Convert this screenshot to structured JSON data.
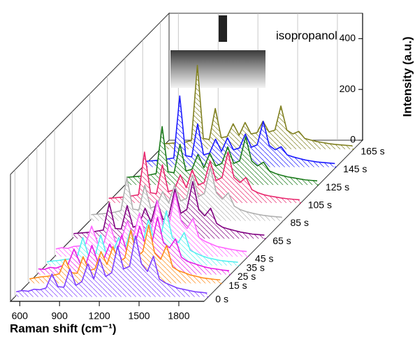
{
  "chart_data": {
    "type": "waterfall",
    "xlabel": "Raman shift (cm⁻¹)",
    "zlabel": "Intensity (a.u.)",
    "annotation": "isopropanol",
    "xlim": [
      530,
      1990
    ],
    "xticks": [
      600,
      900,
      1200,
      1500,
      1800
    ],
    "tlim": [
      -5,
      175
    ],
    "zlim": [
      0,
      500
    ],
    "zticks": [
      0,
      200,
      400
    ],
    "x": [
      540,
      585,
      630,
      675,
      720,
      765,
      810,
      855,
      900,
      945,
      990,
      1035,
      1080,
      1125,
      1170,
      1215,
      1260,
      1305,
      1350,
      1395,
      1440,
      1485,
      1530,
      1575,
      1620,
      1665,
      1710,
      1755,
      1800,
      1845,
      1890,
      1935,
      1980
    ],
    "series": [
      {
        "name": "0 s",
        "time": 0,
        "color": "#7f3fff",
        "values": [
          20,
          25,
          22,
          30,
          28,
          35,
          90,
          40,
          38,
          110,
          45,
          60,
          130,
          70,
          150,
          80,
          95,
          200,
          110,
          120,
          240,
          130,
          100,
          160,
          70,
          55,
          45,
          35,
          30,
          25,
          20,
          18,
          15
        ]
      },
      {
        "name": "15 s",
        "time": 15,
        "color": "#ff8c1a",
        "values": [
          18,
          22,
          26,
          28,
          32,
          38,
          95,
          42,
          40,
          105,
          50,
          58,
          125,
          75,
          145,
          85,
          100,
          210,
          105,
          125,
          230,
          120,
          95,
          150,
          65,
          50,
          42,
          33,
          28,
          22,
          19,
          16,
          14
        ]
      },
      {
        "name": "25 s",
        "time": 25,
        "color": "#e61ee6",
        "values": [
          22,
          20,
          28,
          25,
          34,
          40,
          100,
          45,
          42,
          115,
          48,
          62,
          120,
          72,
          155,
          78,
          98,
          190,
          115,
          118,
          225,
          125,
          105,
          140,
          68,
          52,
          44,
          36,
          29,
          24,
          21,
          17,
          15
        ]
      },
      {
        "name": "35 s",
        "time": 35,
        "color": "#55f0f0",
        "values": [
          15,
          18,
          20,
          24,
          26,
          30,
          110,
          35,
          34,
          120,
          40,
          50,
          110,
          60,
          140,
          70,
          85,
          180,
          95,
          110,
          215,
          110,
          90,
          130,
          60,
          48,
          38,
          30,
          25,
          20,
          17,
          15,
          13
        ]
      },
      {
        "name": "45 s",
        "time": 45,
        "color": "#ff66ff",
        "values": [
          30,
          35,
          32,
          40,
          42,
          50,
          120,
          55,
          50,
          130,
          58,
          70,
          140,
          80,
          170,
          90,
          105,
          220,
          120,
          130,
          250,
          140,
          110,
          150,
          75,
          60,
          50,
          40,
          35,
          30,
          26,
          22,
          20
        ]
      },
      {
        "name": "65 s",
        "time": 65,
        "color": "#800080",
        "values": [
          20,
          22,
          24,
          26,
          30,
          34,
          140,
          40,
          38,
          130,
          45,
          55,
          120,
          65,
          150,
          75,
          90,
          195,
          100,
          115,
          225,
          115,
          90,
          120,
          60,
          45,
          38,
          32,
          26,
          22,
          18,
          16,
          14
        ]
      },
      {
        "name": "85 s",
        "time": 85,
        "color": "#b0b0b0",
        "values": [
          24,
          26,
          28,
          30,
          34,
          40,
          170,
          46,
          42,
          140,
          50,
          60,
          115,
          70,
          140,
          78,
          88,
          180,
          95,
          108,
          210,
          110,
          85,
          110,
          58,
          44,
          36,
          30,
          25,
          21,
          18,
          16,
          14
        ]
      },
      {
        "name": "105 s",
        "time": 105,
        "color": "#e8286e",
        "values": [
          18,
          20,
          22,
          24,
          28,
          32,
          200,
          40,
          36,
          150,
          44,
          52,
          110,
          60,
          130,
          70,
          80,
          165,
          88,
          100,
          200,
          100,
          80,
          100,
          52,
          40,
          32,
          27,
          23,
          19,
          16,
          14,
          12
        ]
      },
      {
        "name": "125 s",
        "time": 125,
        "color": "#1a7a1a",
        "values": [
          30,
          32,
          34,
          36,
          40,
          45,
          230,
          52,
          48,
          160,
          55,
          62,
          120,
          68,
          125,
          75,
          85,
          150,
          85,
          95,
          190,
          95,
          75,
          90,
          55,
          45,
          38,
          32,
          28,
          24,
          20,
          18,
          16
        ]
      },
      {
        "name": "145 s",
        "time": 145,
        "color": "#1a1aff",
        "values": [
          22,
          24,
          26,
          28,
          32,
          36,
          280,
          45,
          40,
          170,
          48,
          55,
          110,
          62,
          115,
          68,
          75,
          130,
          78,
          88,
          180,
          85,
          68,
          80,
          48,
          40,
          34,
          28,
          24,
          20,
          18,
          16,
          14
        ]
      },
      {
        "name": "165 s",
        "time": 165,
        "color": "#808020",
        "values": [
          20,
          22,
          24,
          26,
          28,
          34,
          330,
          42,
          38,
          160,
          45,
          50,
          100,
          55,
          105,
          60,
          65,
          110,
          68,
          75,
          170,
          75,
          60,
          70,
          42,
          36,
          30,
          26,
          22,
          19,
          17,
          15,
          13
        ]
      }
    ]
  }
}
